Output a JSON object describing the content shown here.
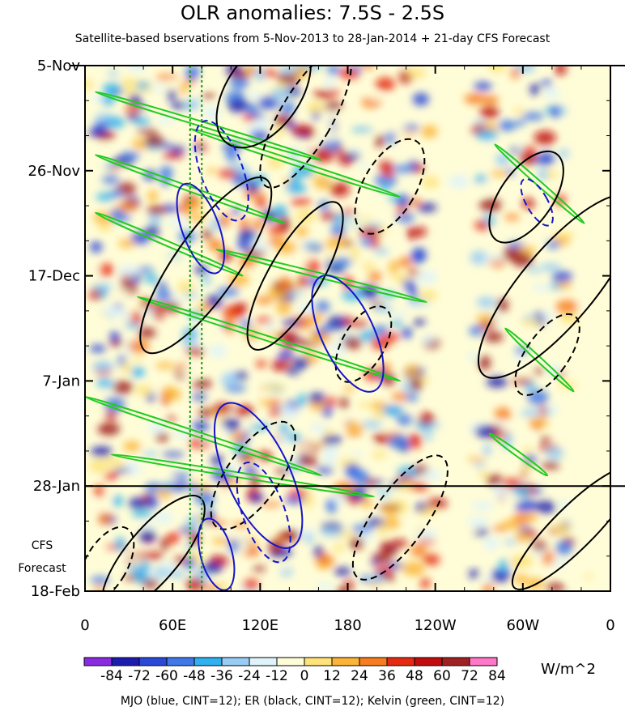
{
  "chart_data": {
    "type": "heatmap",
    "title": "OLR anomalies: 7.5S - 2.5S",
    "subtitle": "Satellite-based bservations from 5-Nov-2013 to 28-Jan-2014 + 21-day CFS Forecast",
    "x_ticks": [
      "0",
      "60E",
      "120E",
      "180",
      "120W",
      "60W",
      "0"
    ],
    "x_values": [
      0,
      60,
      120,
      180,
      240,
      300,
      360
    ],
    "xlim": [
      0,
      360
    ],
    "y_ticks": [
      "5-Nov",
      "26-Nov",
      "17-Dec",
      "7-Jan",
      "28-Jan",
      "18-Feb"
    ],
    "y_values": [
      "2013-11-05",
      "2013-11-26",
      "2013-12-17",
      "2014-01-07",
      "2014-01-28",
      "2014-02-18"
    ],
    "ylim": [
      "2013-11-05",
      "2014-02-18"
    ],
    "forecast_start": "2014-01-28",
    "forecast_label": [
      "CFS",
      "Forecast"
    ],
    "colorbar": {
      "levels": [
        -84,
        -72,
        -60,
        -48,
        -36,
        -24,
        -12,
        0,
        12,
        24,
        36,
        48,
        60,
        72,
        84
      ],
      "labels": [
        "-84",
        "-72",
        "-60",
        "-48",
        "-36",
        "-24",
        "-12",
        "0",
        "12",
        "24",
        "36",
        "48",
        "60",
        "72",
        "84"
      ],
      "colors": [
        "#8a2be2",
        "#1c1cae",
        "#2b48d8",
        "#3f78e8",
        "#2fb0f0",
        "#99cdf5",
        "#def3fa",
        "#fffdd8",
        "#fde37a",
        "#fbb437",
        "#f77d1e",
        "#e62a12",
        "#c10d0d",
        "#9f2222",
        "#ff77c8"
      ],
      "units": "W/m^2"
    },
    "footnote": "MJO (blue, CINT=12); ER (black, CINT=12); Kelvin (green, CINT=12)",
    "contour_colors": {
      "mjo": "#1515c8",
      "er": "#000000",
      "kelvin": "#22cc22"
    },
    "reference_lines": [
      {
        "lon": 72,
        "color": "#229922",
        "style": "dotted"
      },
      {
        "lon": 80,
        "color": "#229922",
        "style": "dotted"
      }
    ]
  }
}
